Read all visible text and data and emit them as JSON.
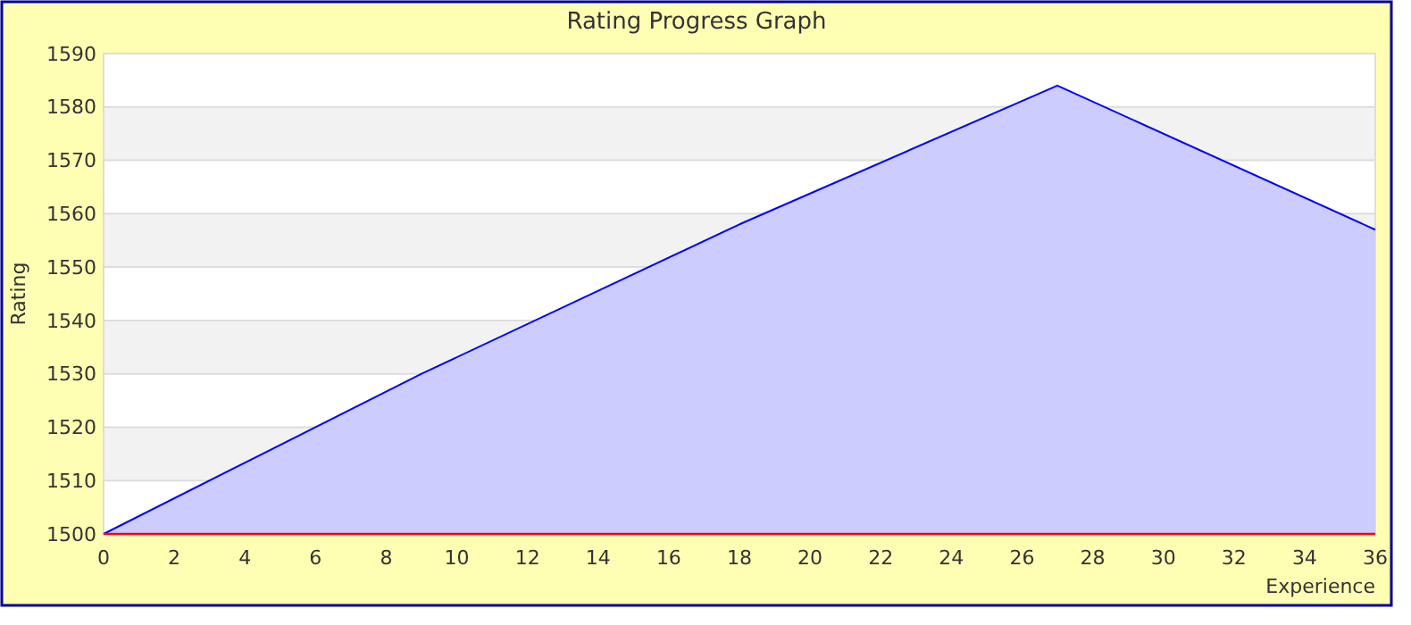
{
  "chart_data": {
    "type": "area",
    "title": "Rating Progress Graph",
    "xlabel": "Experience",
    "ylabel": "Rating",
    "x": [
      0,
      9,
      18,
      27,
      36
    ],
    "series": [
      {
        "color": "#0000ff",
        "values": [
          1500,
          1530,
          1558,
          1584,
          1557
        ]
      }
    ],
    "xlim": [
      0,
      36
    ],
    "xticks": [
      0,
      2,
      4,
      6,
      8,
      10,
      12,
      14,
      16,
      18,
      20,
      22,
      24,
      26,
      28,
      30,
      32,
      34,
      36
    ],
    "ylim": [
      1500,
      1590
    ],
    "yticks": [
      1500,
      1510,
      1520,
      1530,
      1540,
      1550,
      1560,
      1570,
      1580,
      1590
    ],
    "grid": "y",
    "marker": "none"
  }
}
